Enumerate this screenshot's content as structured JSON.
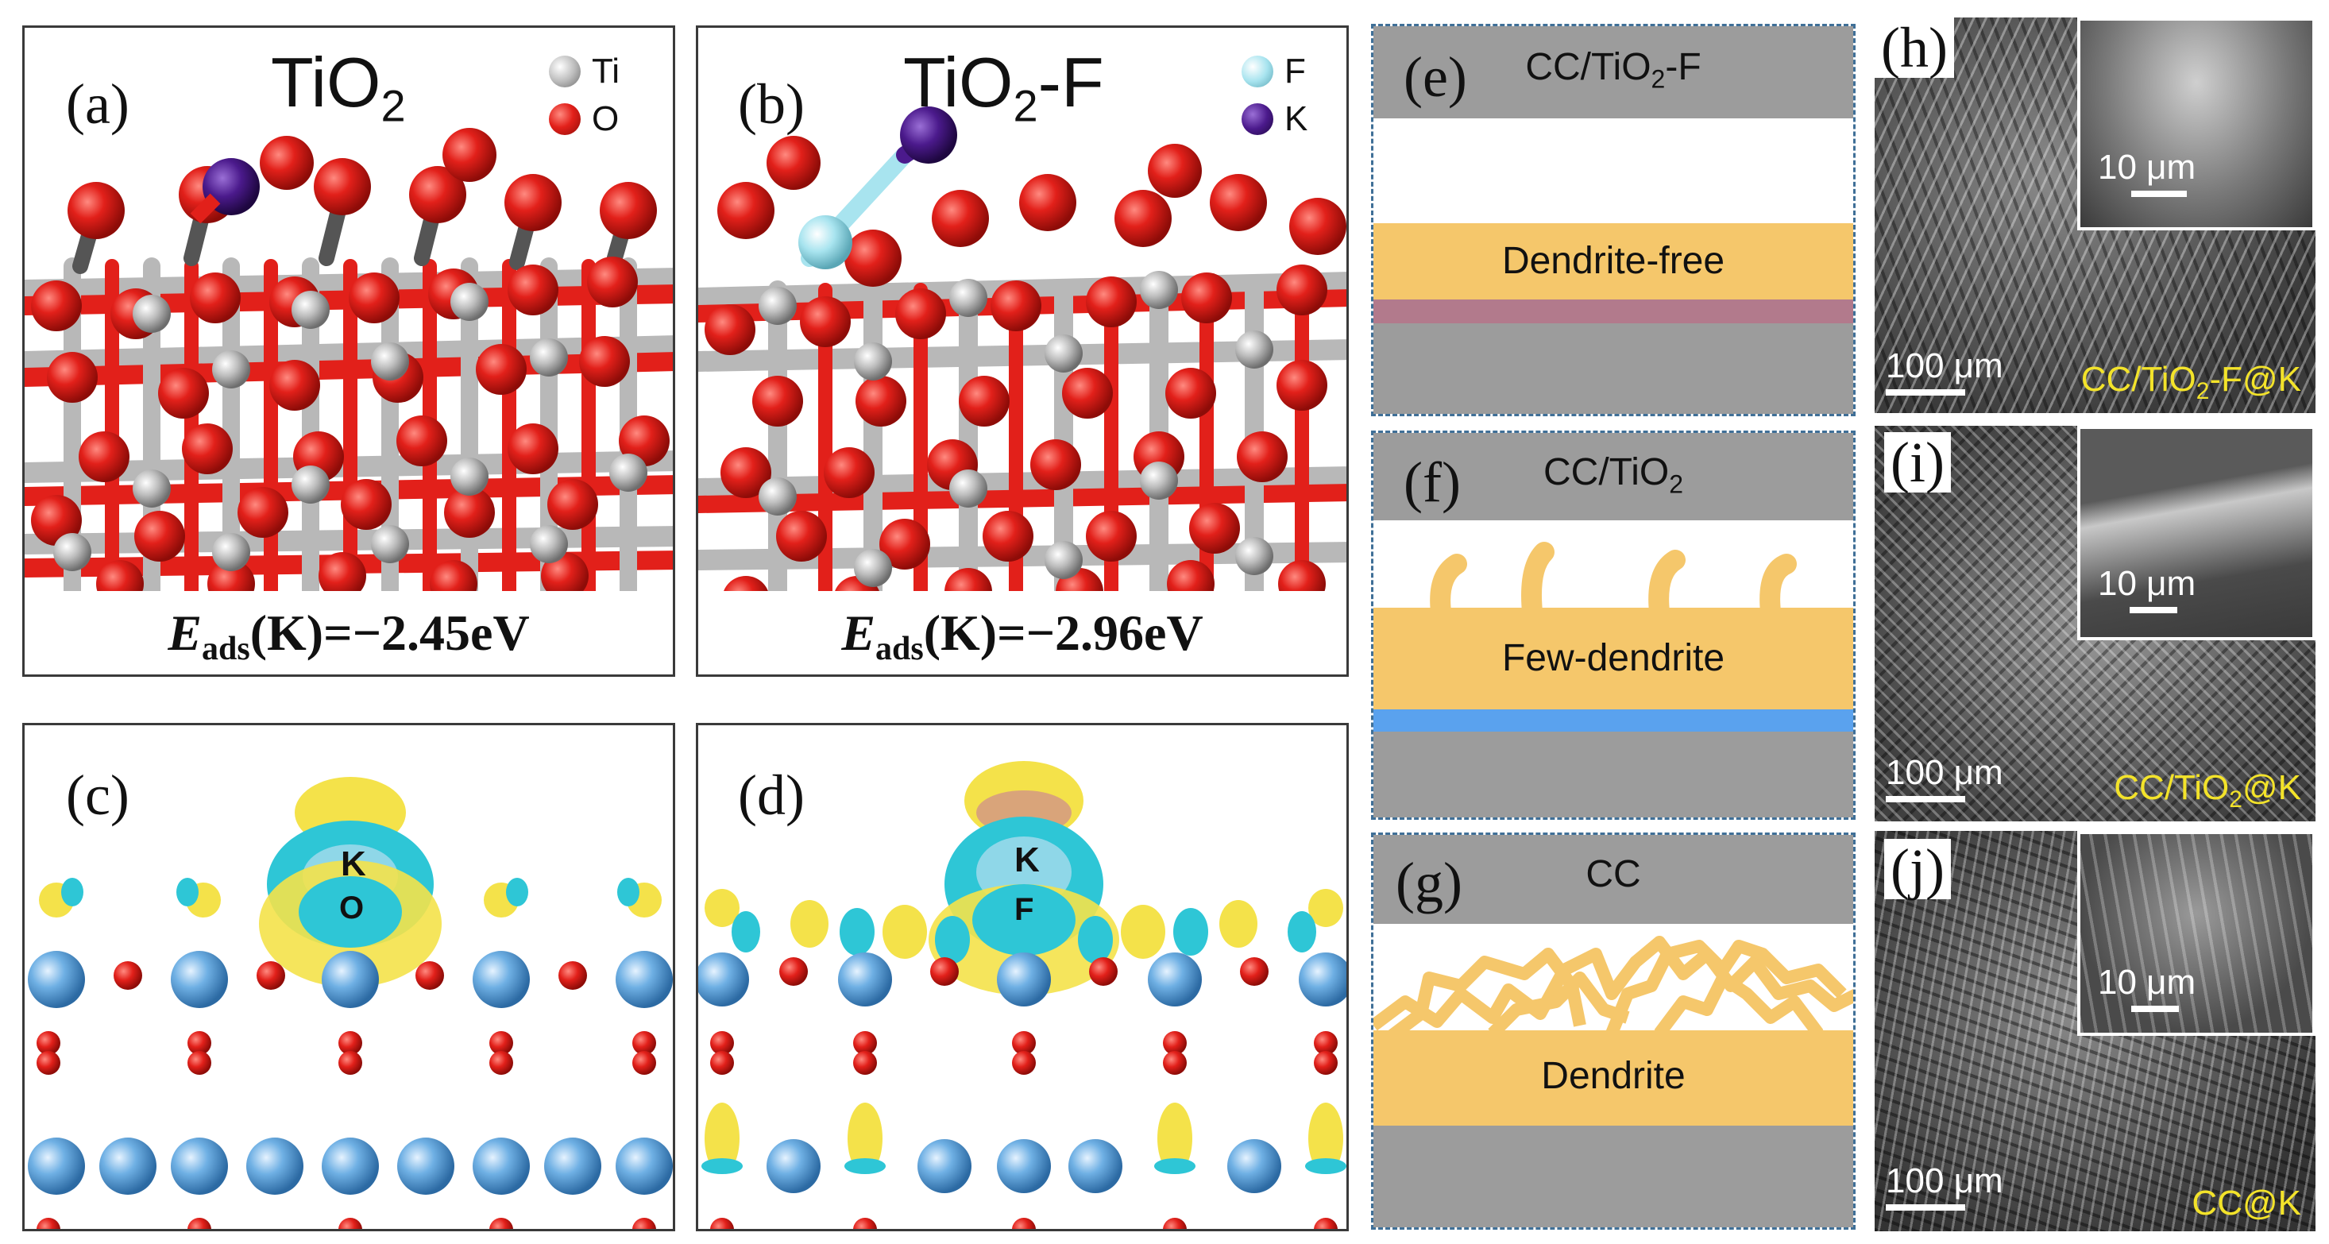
{
  "panels": {
    "a": {
      "label": "(a)",
      "title_main": "TiO",
      "title_sub": "2",
      "legend": [
        {
          "name": "Ti",
          "color": "#bdbdbd"
        },
        {
          "name": "O",
          "color": "#e2201a"
        }
      ],
      "energy_prefix": "E",
      "energy_sub": "ads",
      "energy_value": "(K)=−2.45eV"
    },
    "b": {
      "label": "(b)",
      "title_main": "TiO",
      "title_sub": "2",
      "title_suffix": "-F",
      "legend": [
        {
          "name": "F",
          "color": "#a8e4ef"
        },
        {
          "name": "K",
          "color": "#4b1a8c"
        }
      ],
      "energy_prefix": "E",
      "energy_sub": "ads",
      "energy_value": "(K)=−2.96eV"
    },
    "c": {
      "label": "(c)",
      "atom_top": "K",
      "atom_bottom": "O"
    },
    "d": {
      "label": "(d)",
      "atom_top": "K",
      "atom_bottom": "F"
    },
    "e": {
      "label": "(e)",
      "title_main": "CC/TiO",
      "title_sub": "2",
      "title_suffix": "-F",
      "layer_text": "Dendrite-free"
    },
    "f": {
      "label": "(f)",
      "title_main": "CC/TiO",
      "title_sub": "2",
      "layer_text": "Few-dendrite"
    },
    "g": {
      "label": "(g)",
      "title_main": "CC",
      "layer_text": "Dendrite"
    },
    "h": {
      "label": "(h)",
      "scale_main": "100 μm",
      "scale_inset": "10 μm",
      "sample_main": "CC/TiO",
      "sample_sub": "2",
      "sample_suffix": "-F@K"
    },
    "i": {
      "label": "(i)",
      "scale_main": "100 μm",
      "scale_inset": "10 μm",
      "sample_main": "CC/TiO",
      "sample_sub": "2",
      "sample_suffix": "@K"
    },
    "j": {
      "label": "(j)",
      "scale_main": "100 μm",
      "scale_inset": "10 μm",
      "sample_main": "CC@K"
    }
  },
  "colors": {
    "titanium": "#bdbdbd",
    "oxygen": "#e2201a",
    "potassium": "#4b1a8c",
    "fluorine": "#a8e4ef",
    "substrate": "#9c9c9c",
    "metal_layer": "#f5c76b",
    "sei_pink": "#b27a8c",
    "sei_blue": "#5aa2ee",
    "charge_yellow": "#f4e24a",
    "charge_cyan": "#2ec6d6",
    "ti_sphere": "#6fb0e4",
    "scale_text": "#f3e32a"
  }
}
